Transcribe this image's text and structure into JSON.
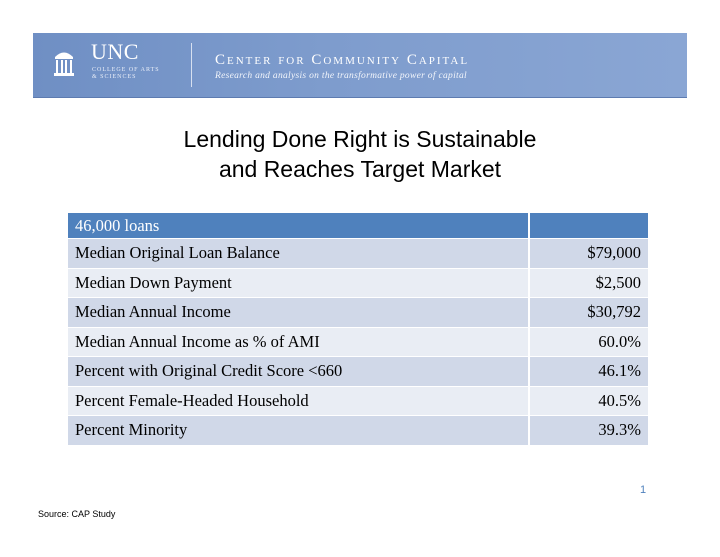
{
  "header": {
    "university": "UNC",
    "college": "COLLEGE OF ARTS & SCIENCES",
    "center_name": "Center for Community Capital",
    "center_tagline": "Research and analysis on the transformative power of capital"
  },
  "slide": {
    "title_line1": "Lending Done Right is Sustainable",
    "title_line2": "and Reaches Target Market"
  },
  "table": {
    "header": [
      "46,000 loans",
      ""
    ],
    "rows": [
      {
        "label": "Median Original Loan Balance",
        "value": "$79,000"
      },
      {
        "label": "Median Down Payment",
        "value": "$2,500"
      },
      {
        "label": "Median Annual Income",
        "value": "$30,792"
      },
      {
        "label": "Median Annual Income as % of AMI",
        "value": "60.0%"
      },
      {
        "label": "Percent with Original Credit Score <660",
        "value": "46.1%"
      },
      {
        "label": "Percent Female-Headed Household",
        "value": "40.5%"
      },
      {
        "label": "Percent Minority",
        "value": "39.3%"
      }
    ]
  },
  "footer": {
    "page_number": "1",
    "source": "Source: CAP Study"
  },
  "colors": {
    "banner": "#7e9ccd",
    "table_header": "#4f81bd",
    "row_dark": "#d0d8e8",
    "row_light": "#e9edf4"
  }
}
